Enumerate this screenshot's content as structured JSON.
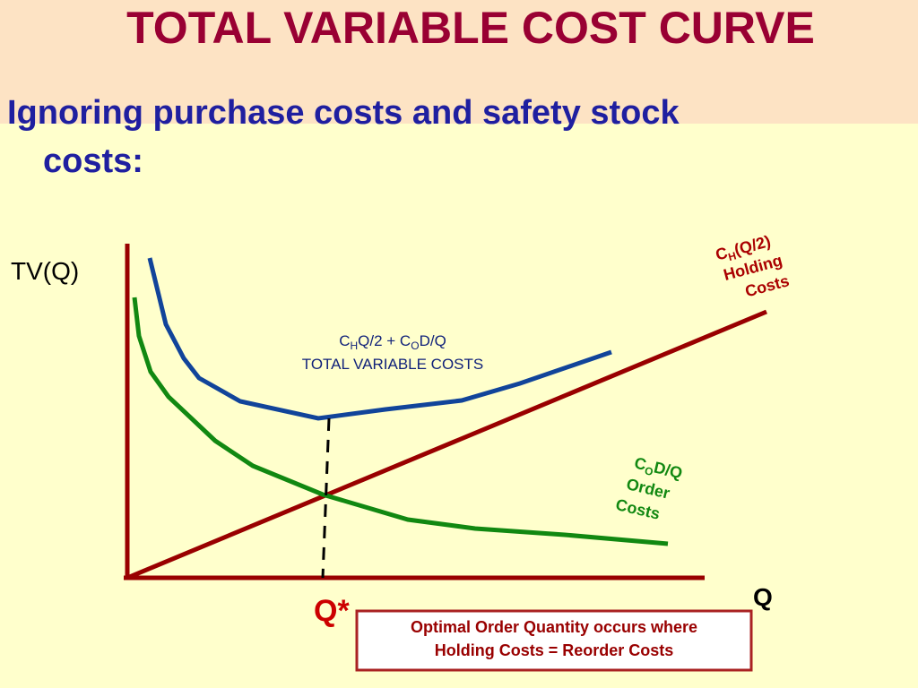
{
  "header": {
    "title": "TOTAL VARIABLE COST CURVE",
    "subtitle": [
      "Ignoring purchase costs and safety stock",
      "costs:"
    ]
  },
  "axes": {
    "y_label": "TV(Q)",
    "x_label": "Q",
    "optimum_label": "Q*"
  },
  "curves": {
    "total": {
      "line1": [
        "C",
        "H",
        "Q/2 + C",
        "O",
        "D/Q"
      ],
      "line2": "TOTAL VARIABLE COSTS"
    },
    "holding": {
      "line1": [
        "C",
        "H",
        "(Q/2)"
      ],
      "line2": "Holding",
      "line3": "Costs"
    },
    "order": {
      "line1": [
        "C",
        "O",
        "D/Q"
      ],
      "line2": "Order",
      "line3": "Costs"
    }
  },
  "note": [
    "Optimal Order Quantity occurs where",
    "Holding Costs = Reorder Costs"
  ]
}
